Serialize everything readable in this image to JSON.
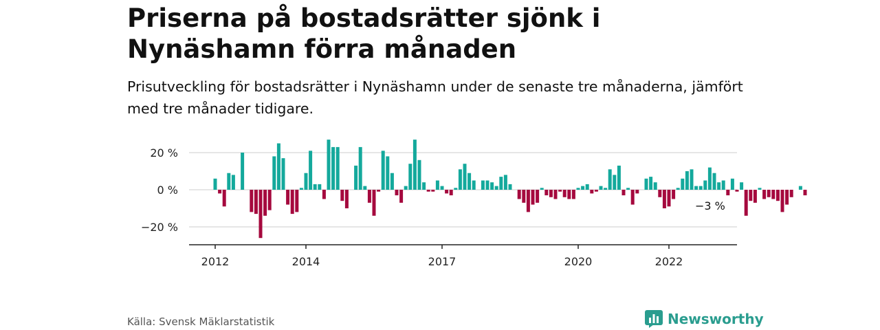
{
  "header": {
    "title": "Priserna på bostadsrätter sjönk i Nynäshamn förra månaden",
    "subtitle": "Prisutveckling för bostadsrätter i Nynäshamn under de senaste tre månaderna, jämfört med tre månader tidigare."
  },
  "footer": {
    "source": "Källa: Svensk Mäklarstatistik",
    "brand": "Newsworthy",
    "brand_icon": "bar-chart-icon"
  },
  "colors": {
    "positive": "#14a99c",
    "negative": "#a5093e",
    "grid": "#d6d6d6",
    "axis": "#222222",
    "brand": "#2a9d8f"
  },
  "chart_data": {
    "type": "bar",
    "unit": "%",
    "ylim": [
      -30,
      30
    ],
    "yticks": [
      20,
      0,
      -20
    ],
    "ytick_labels": [
      "20 %",
      "0 %",
      "−20 %"
    ],
    "xticks": [
      {
        "label": "2012",
        "index": 0
      },
      {
        "label": "2014",
        "index": 20
      },
      {
        "label": "2017",
        "index": 50
      },
      {
        "label": "2020",
        "index": 80
      },
      {
        "label": "2022",
        "index": 100
      }
    ],
    "grid": true,
    "last_value_label": "−3 %",
    "values": [
      6,
      -2,
      -9,
      9,
      8,
      0,
      20,
      0,
      -12,
      -13,
      -26,
      -14,
      -11,
      18,
      25,
      17,
      -8,
      -13,
      -12,
      1,
      9,
      21,
      3,
      3,
      -5,
      27,
      23,
      23,
      -6,
      -10,
      0,
      13,
      23,
      2,
      -7,
      -14,
      -1,
      21,
      18,
      9,
      -3,
      -7,
      2,
      14,
      27,
      16,
      4,
      -1,
      -1,
      5,
      2,
      -2,
      -3,
      1,
      11,
      14,
      9,
      5,
      0,
      5,
      5,
      4,
      2,
      7,
      8,
      3,
      0,
      -5,
      -7,
      -12,
      -8,
      -7,
      1,
      -3,
      -4,
      -5,
      -1,
      -4,
      -5,
      -5,
      1,
      2,
      3,
      -2,
      -1,
      2,
      1,
      11,
      8,
      13,
      -3,
      1,
      -8,
      -2,
      0,
      6,
      7,
      4,
      -4,
      -10,
      -9,
      -5,
      1,
      6,
      10,
      11,
      2,
      2,
      5,
      12,
      9,
      4,
      5,
      -3,
      6,
      -1,
      4,
      -14,
      -6,
      -7,
      1,
      -5,
      -4,
      -5,
      -6,
      -12,
      -8,
      -4,
      0,
      2,
      -3
    ]
  }
}
